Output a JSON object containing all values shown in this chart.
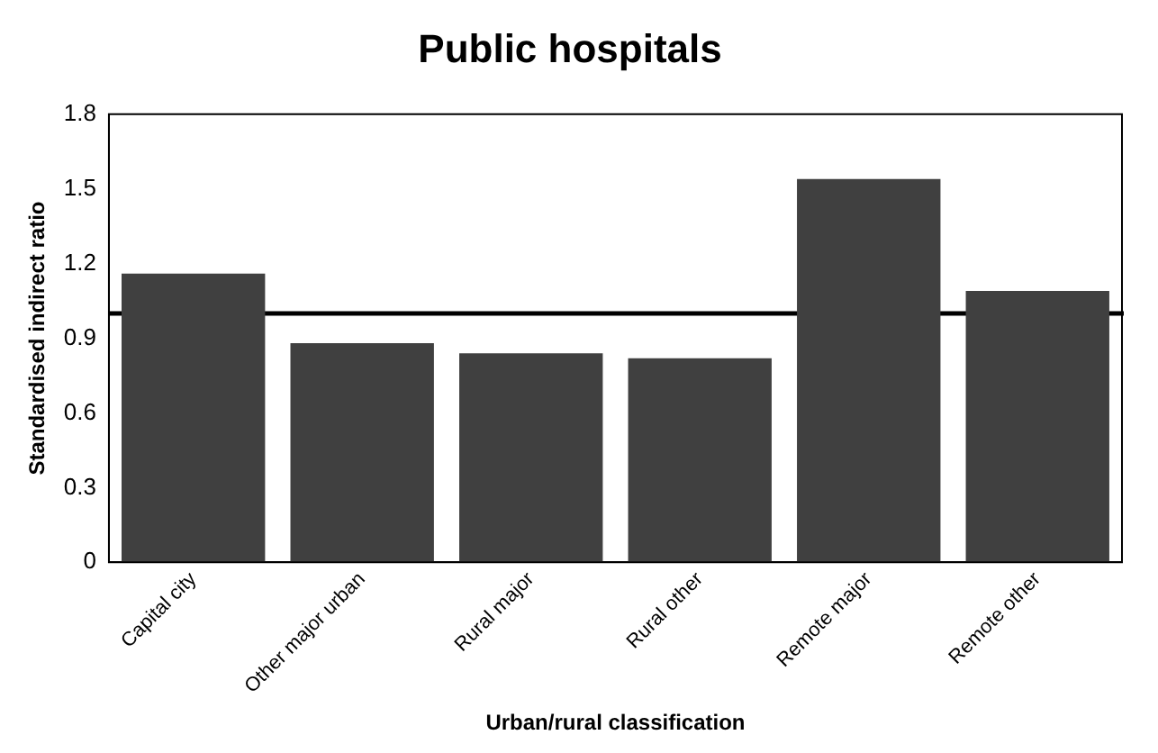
{
  "chart_data": {
    "type": "bar",
    "title": "Public hospitals",
    "xlabel": "Urban/rural classification",
    "ylabel": "Standardised indirect ratio",
    "categories": [
      "Capital city",
      "Other major urban",
      "Rural major",
      "Rural other",
      "Remote major",
      "Remote other"
    ],
    "values": [
      1.16,
      0.88,
      0.84,
      0.82,
      1.54,
      1.09
    ],
    "color": "#404040",
    "ylim": [
      0,
      1.8
    ],
    "yticks": [
      0,
      0.3,
      0.6,
      0.9,
      1.2,
      1.5,
      1.8
    ],
    "grid": false,
    "legend": false,
    "ref_lines": [
      {
        "axis": "y",
        "value": 1.0,
        "color": "#000000"
      }
    ]
  }
}
